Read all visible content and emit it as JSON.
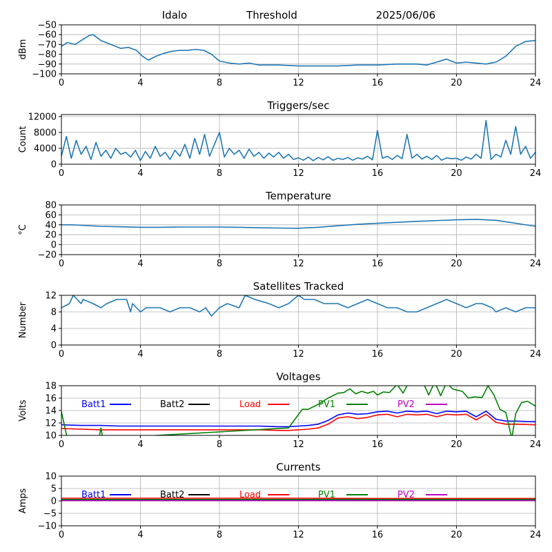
{
  "header": {
    "site": "Idalo",
    "label": "Threshold",
    "date": "2025/06/06"
  },
  "colors": {
    "series": "#1f77b4",
    "batt1": "#0000ff",
    "batt2": "#000000",
    "load": "#ff0000",
    "pv1": "#008000",
    "pv2": "#bf00bf",
    "grid": "#b0b0b0"
  },
  "chart_data": [
    {
      "id": "threshold",
      "type": "line",
      "title": "",
      "xlabel": "",
      "ylabel": "dBm",
      "xlim": [
        0,
        24
      ],
      "ylim": [
        -100,
        -50
      ],
      "xticks": [
        0,
        4,
        8,
        12,
        16,
        20,
        24
      ],
      "yticks": [
        -100,
        -90,
        -80,
        -70,
        -60,
        -50
      ],
      "grid": true,
      "series": [
        {
          "color": "#1f77b4",
          "x": [
            0,
            0.3,
            0.7,
            1.0,
            1.4,
            1.6,
            2.0,
            2.5,
            3.0,
            3.4,
            3.8,
            4.1,
            4.4,
            4.8,
            5.2,
            5.6,
            6.0,
            6.4,
            6.8,
            7.2,
            7.6,
            8.0,
            8.5,
            9.0,
            9.5,
            10,
            11,
            12,
            13,
            14,
            15,
            16,
            17,
            18,
            18.5,
            19,
            19.5,
            20,
            20.5,
            21,
            21.5,
            22,
            22.5,
            23,
            23.5,
            24
          ],
          "y": [
            -72,
            -68,
            -70,
            -66,
            -61,
            -60,
            -66,
            -70,
            -74,
            -73,
            -76,
            -82,
            -86,
            -82,
            -79,
            -77,
            -76,
            -76,
            -75,
            -76,
            -80,
            -87,
            -89,
            -90,
            -89,
            -91,
            -91,
            -92,
            -92,
            -92,
            -91,
            -91,
            -90,
            -90,
            -91,
            -88,
            -85,
            -89,
            -88,
            -89,
            -90,
            -88,
            -82,
            -72,
            -67,
            -66
          ]
        }
      ]
    },
    {
      "id": "triggers",
      "type": "line",
      "title": "Triggers/sec",
      "xlabel": "",
      "ylabel": "Count",
      "xlim": [
        0,
        24
      ],
      "ylim": [
        0,
        12500
      ],
      "xticks": [
        0,
        4,
        8,
        12,
        16,
        20,
        24
      ],
      "yticks": [
        0,
        4000,
        8000,
        12000
      ],
      "grid": true,
      "series": [
        {
          "color": "#1f77b4",
          "x": [
            0,
            0.25,
            0.5,
            0.75,
            1.0,
            1.25,
            1.5,
            1.75,
            2.0,
            2.25,
            2.5,
            2.75,
            3.0,
            3.25,
            3.5,
            3.75,
            4.0,
            4.25,
            4.5,
            4.75,
            5.0,
            5.25,
            5.5,
            5.75,
            6.0,
            6.25,
            6.5,
            6.75,
            7.0,
            7.25,
            7.5,
            7.75,
            8.0,
            8.25,
            8.5,
            8.75,
            9.0,
            9.25,
            9.5,
            9.75,
            10.0,
            10.25,
            10.5,
            10.75,
            11.0,
            11.25,
            11.5,
            11.75,
            12.0,
            12.25,
            12.5,
            12.75,
            13.0,
            13.25,
            13.5,
            13.75,
            14.0,
            14.25,
            14.5,
            14.75,
            15.0,
            15.25,
            15.5,
            15.75,
            16.0,
            16.25,
            16.5,
            16.75,
            17.0,
            17.25,
            17.5,
            17.75,
            18.0,
            18.25,
            18.5,
            18.75,
            19.0,
            19.25,
            19.5,
            19.75,
            20.0,
            20.25,
            20.5,
            20.75,
            21.0,
            21.25,
            21.5,
            21.75,
            22.0,
            22.25,
            22.5,
            22.75,
            23.0,
            23.25,
            23.5,
            23.75,
            24.0
          ],
          "y": [
            2000,
            7000,
            1500,
            6000,
            2500,
            4500,
            1200,
            5500,
            2000,
            3500,
            1500,
            4000,
            2500,
            3000,
            1800,
            3500,
            900,
            3200,
            1500,
            4500,
            2000,
            3000,
            1200,
            3500,
            2000,
            5000,
            1500,
            6500,
            2500,
            7500,
            2000,
            5000,
            8000,
            1800,
            4000,
            2500,
            3500,
            1500,
            3800,
            2000,
            3000,
            1500,
            2800,
            1800,
            3000,
            1500,
            2500,
            1200,
            1600,
            1000,
            1800,
            900,
            1700,
            1100,
            1900,
            1000,
            1500,
            1200,
            1700,
            1000,
            1600,
            1300,
            2000,
            1100,
            8500,
            1500,
            2000,
            1200,
            2200,
            1400,
            7500,
            1500,
            2500,
            1300,
            2000,
            1200,
            2200,
            1000,
            1600,
            1400,
            1500,
            1000,
            1800,
            1300,
            2500,
            1500,
            11000,
            1200,
            2500,
            1800,
            6000,
            2500,
            9500,
            2500,
            4500,
            1500,
            3000
          ]
        }
      ]
    },
    {
      "id": "temperature",
      "type": "line",
      "title": "Temperature",
      "xlabel": "",
      "ylabel": "°C",
      "xlim": [
        0,
        24
      ],
      "ylim": [
        -20,
        80
      ],
      "xticks": [
        0,
        4,
        8,
        12,
        16,
        20,
        24
      ],
      "yticks": [
        -20,
        0,
        20,
        40,
        60,
        80
      ],
      "grid": true,
      "series": [
        {
          "color": "#1f77b4",
          "x": [
            0,
            0.5,
            1,
            2,
            3,
            4,
            5,
            6,
            7,
            8,
            9,
            10,
            11,
            12,
            13,
            14,
            15,
            16,
            17,
            18,
            19,
            20,
            21,
            22,
            23,
            24
          ],
          "y": [
            40,
            40,
            39,
            37,
            36,
            35,
            35,
            35.5,
            35.5,
            35.5,
            35,
            34,
            33.5,
            33,
            35,
            38,
            41,
            43,
            45,
            47,
            48.5,
            50,
            51,
            49,
            43,
            37
          ]
        }
      ]
    },
    {
      "id": "satellites",
      "type": "line",
      "title": "Satellites Tracked",
      "xlabel": "",
      "ylabel": "Number",
      "xlim": [
        0,
        24
      ],
      "ylim": [
        0,
        12
      ],
      "xticks": [
        0,
        4,
        8,
        12,
        16,
        20,
        24
      ],
      "yticks": [
        0,
        4,
        8,
        12
      ],
      "grid": true,
      "series": [
        {
          "color": "#1f77b4",
          "x": [
            0,
            0.4,
            0.6,
            1.0,
            1.1,
            1.6,
            2.0,
            2.3,
            2.8,
            3.3,
            3.5,
            3.6,
            4.0,
            4.3,
            5.0,
            5.5,
            6.0,
            6.5,
            7.0,
            7.3,
            7.6,
            8.0,
            8.4,
            9.0,
            9.3,
            9.8,
            10.5,
            11.0,
            11.5,
            12.0,
            12.3,
            12.8,
            13.3,
            14.0,
            14.5,
            15.0,
            15.5,
            16.0,
            16.5,
            17.0,
            17.5,
            18.0,
            18.5,
            19.0,
            19.5,
            20.0,
            20.5,
            21.0,
            21.3,
            21.8,
            22.0,
            22.5,
            23.0,
            23.5,
            24.0
          ],
          "y": [
            9,
            10,
            12,
            10,
            11,
            10,
            9,
            10,
            11,
            11,
            8,
            10,
            8,
            9,
            9,
            8,
            9,
            9,
            8,
            9,
            7,
            9,
            10,
            9,
            12,
            11,
            10,
            9,
            10,
            12,
            11,
            11,
            10,
            10,
            9,
            10,
            11,
            10,
            9,
            9,
            8,
            8,
            9,
            10,
            11,
            10,
            9,
            10,
            10,
            9,
            8,
            9,
            8,
            9,
            9
          ]
        }
      ]
    },
    {
      "id": "voltages",
      "type": "line",
      "title": "Voltages",
      "xlabel": "",
      "ylabel": "Volts",
      "xlim": [
        0,
        24
      ],
      "ylim": [
        10,
        18
      ],
      "xticks": [
        0,
        4,
        8,
        12,
        16,
        20,
        24
      ],
      "yticks": [
        10,
        12,
        14,
        16,
        18
      ],
      "grid": true,
      "legend": "top-inline",
      "series": [
        {
          "name": "Batt1",
          "color": "#0000ff",
          "x": [
            0,
            1,
            2,
            3,
            4,
            5,
            6,
            7,
            8,
            9,
            10,
            11,
            11.5,
            12,
            12.5,
            13,
            13.5,
            14,
            14.5,
            15,
            15.5,
            16,
            16.5,
            17,
            17.5,
            18,
            18.5,
            19,
            19.5,
            20,
            20.5,
            21,
            21.5,
            22,
            22.5,
            23,
            24
          ],
          "y": [
            11.7,
            11.6,
            11.6,
            11.5,
            11.5,
            11.5,
            11.5,
            11.5,
            11.5,
            11.5,
            11.5,
            11.4,
            11.4,
            11.5,
            11.6,
            11.8,
            12.4,
            13.3,
            13.6,
            13.4,
            13.5,
            13.8,
            13.9,
            13.6,
            13.9,
            13.8,
            13.9,
            13.5,
            13.9,
            13.8,
            13.9,
            13.0,
            13.9,
            12.6,
            12.3,
            12.3,
            12.2
          ]
        },
        {
          "name": "Batt2",
          "color": "#000000",
          "x": [],
          "y": []
        },
        {
          "name": "Load",
          "color": "#ff0000",
          "x": [
            0,
            1,
            2,
            3,
            4,
            5,
            6,
            7,
            8,
            9,
            10,
            11,
            11.5,
            12,
            12.5,
            13,
            13.5,
            14,
            14.5,
            15,
            15.5,
            16,
            16.5,
            17,
            17.5,
            18,
            18.5,
            19,
            19.5,
            20,
            20.5,
            21,
            21.5,
            22,
            22.5,
            23,
            24
          ],
          "y": [
            11.1,
            11.0,
            10.9,
            10.9,
            10.9,
            10.9,
            10.9,
            10.9,
            10.9,
            10.9,
            10.9,
            10.8,
            10.8,
            10.9,
            11.0,
            11.2,
            11.8,
            12.8,
            13.0,
            12.7,
            12.9,
            13.3,
            13.4,
            13.0,
            13.4,
            13.3,
            13.4,
            13.0,
            13.4,
            13.3,
            13.4,
            12.5,
            13.4,
            12.1,
            11.8,
            11.8,
            11.7
          ]
        },
        {
          "name": "PV1",
          "color": "#008000",
          "x": [
            0,
            0.3,
            1.9,
            2.0,
            2.1,
            11.5,
            11.8,
            12.2,
            12.5,
            13.0,
            13.5,
            14.0,
            14.3,
            14.6,
            14.9,
            15.2,
            15.5,
            15.8,
            16.0,
            16.3,
            16.6,
            17.0,
            17.3,
            17.6,
            18.0,
            18.3,
            18.6,
            18.9,
            19.2,
            19.5,
            19.8,
            20.0,
            20.3,
            20.6,
            20.9,
            21.3,
            21.6,
            21.9,
            22.2,
            22.5,
            22.8,
            23.0,
            23.3,
            23.6,
            24.0
          ],
          "y": [
            13.8,
            9.5,
            9.5,
            11.2,
            9.5,
            11.2,
            12.5,
            14.2,
            14.2,
            15.0,
            16.0,
            16.8,
            16.9,
            17.5,
            16.7,
            17.1,
            16.8,
            17.1,
            16.5,
            17.0,
            16.9,
            18.2,
            16.8,
            18.6,
            18.6,
            18.6,
            16.5,
            18.6,
            16.4,
            18.5,
            17.5,
            17.3,
            17.1,
            16.0,
            16.2,
            16.1,
            18.0,
            16.5,
            14.2,
            13.7,
            9.5,
            13.5,
            15.3,
            15.5,
            14.7
          ]
        },
        {
          "name": "PV2",
          "color": "#bf00bf",
          "x": [],
          "y": []
        }
      ]
    },
    {
      "id": "currents",
      "type": "line",
      "title": "Currents",
      "xlabel": "",
      "ylabel": "Amps",
      "xlim": [
        0,
        24
      ],
      "ylim": [
        -10,
        10
      ],
      "xticks": [
        0,
        4,
        8,
        12,
        16,
        20,
        24
      ],
      "yticks": [
        -10,
        -5,
        0,
        5,
        10
      ],
      "grid": true,
      "legend": "top-inline",
      "series": [
        {
          "name": "Batt1",
          "color": "#0000ff",
          "x": [
            0,
            4,
            8,
            12,
            16,
            20,
            24
          ],
          "y": [
            0.3,
            0.3,
            0.3,
            0.3,
            0.3,
            0.3,
            0.3
          ]
        },
        {
          "name": "Batt2",
          "color": "#000000",
          "x": [],
          "y": []
        },
        {
          "name": "Load",
          "color": "#ff0000",
          "x": [
            0,
            4,
            8,
            12,
            16,
            20,
            24
          ],
          "y": [
            1.1,
            1.1,
            1.1,
            1.1,
            1.0,
            1.0,
            1.0
          ]
        },
        {
          "name": "PV1",
          "color": "#008000",
          "x": [
            0,
            4,
            8,
            12,
            16,
            20,
            24
          ],
          "y": [
            0.6,
            0.6,
            0.6,
            0.6,
            0.6,
            0.6,
            0.6
          ]
        },
        {
          "name": "PV2",
          "color": "#bf00bf",
          "x": [
            0,
            4,
            8,
            12,
            16,
            20,
            24
          ],
          "y": [
            0.1,
            0.1,
            0.1,
            0.1,
            0.1,
            0.1,
            0.1
          ]
        }
      ]
    }
  ]
}
